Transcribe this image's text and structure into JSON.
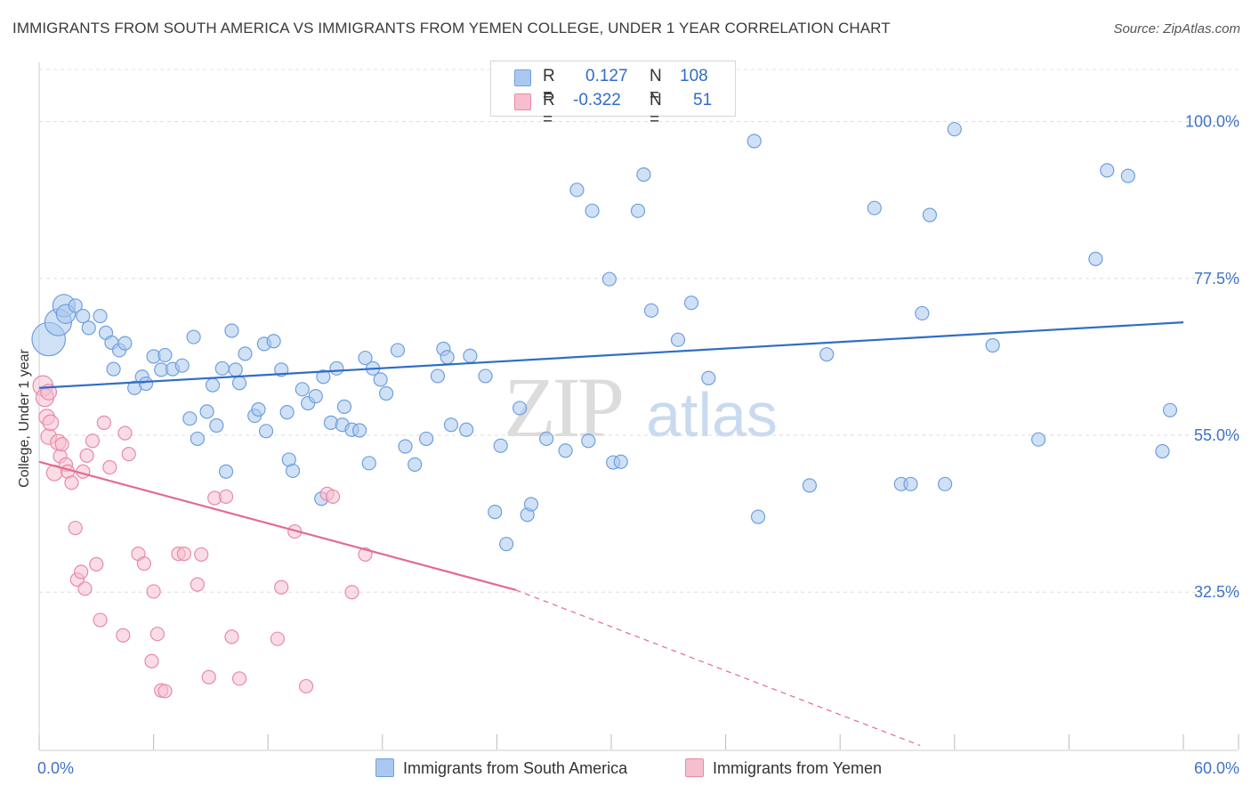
{
  "title": "IMMIGRANTS FROM SOUTH AMERICA VS IMMIGRANTS FROM YEMEN COLLEGE, UNDER 1 YEAR CORRELATION CHART",
  "source": "Source: ZipAtlas.com",
  "watermark": {
    "zip": "ZIP",
    "atlas": "atlas"
  },
  "legend_top": [
    {
      "r_label": "R =",
      "r_value": "0.127",
      "n_label": "N =",
      "n_value": "108"
    },
    {
      "r_label": "R =",
      "r_value": "-0.322",
      "n_label": "N =",
      "n_value": "51"
    }
  ],
  "colors": {
    "blue_fill": "#aac8ef",
    "blue_stroke": "#6f9fde",
    "blue_line": "#2f6dc6",
    "pink_fill": "#f6bfd0",
    "pink_stroke": "#e88aa8",
    "pink_line": "#e26b93",
    "axis_text": "#3f72c6"
  },
  "chart_data": {
    "type": "scatter",
    "title": "IMMIGRANTS FROM SOUTH AMERICA VS IMMIGRANTS FROM YEMEN COLLEGE, UNDER 1 YEAR CORRELATION CHART",
    "xlabel": "",
    "ylabel": "College, Under 1 year",
    "xlim": [
      0,
      60
    ],
    "ylim": [
      9.8,
      108.5
    ],
    "x_tick_labels": [
      "0.0%",
      "60.0%"
    ],
    "y_ticks": [
      32.5,
      55.0,
      77.5,
      100.0
    ],
    "y_tick_labels": [
      "32.5%",
      "55.0%",
      "77.5%",
      "100.0%"
    ],
    "grid": true,
    "legend_position": "bottom",
    "series": [
      {
        "name": "Immigrants from South America",
        "color": "#aac8ef",
        "trend": {
          "x": [
            0,
            60
          ],
          "y": [
            61.8,
            71.2
          ]
        },
        "points": [
          [
            0.5,
            68.8
          ],
          [
            1.0,
            71.2
          ],
          [
            1.3,
            73.6
          ],
          [
            1.4,
            72.4
          ],
          [
            1.9,
            73.6
          ],
          [
            2.3,
            72.1
          ],
          [
            2.6,
            70.4
          ],
          [
            3.2,
            72.1
          ],
          [
            3.5,
            69.7
          ],
          [
            3.8,
            68.3
          ],
          [
            3.9,
            64.5
          ],
          [
            4.2,
            67.2
          ],
          [
            4.5,
            68.2
          ],
          [
            5.0,
            61.8
          ],
          [
            5.4,
            63.4
          ],
          [
            5.6,
            62.4
          ],
          [
            6.0,
            66.3
          ],
          [
            6.4,
            64.4
          ],
          [
            6.6,
            66.5
          ],
          [
            7.0,
            64.5
          ],
          [
            7.5,
            65.0
          ],
          [
            7.9,
            57.4
          ],
          [
            8.1,
            69.1
          ],
          [
            8.3,
            54.5
          ],
          [
            8.8,
            58.4
          ],
          [
            9.1,
            62.2
          ],
          [
            9.3,
            56.4
          ],
          [
            9.6,
            64.6
          ],
          [
            9.8,
            49.8
          ],
          [
            10.1,
            70.0
          ],
          [
            10.3,
            64.4
          ],
          [
            10.5,
            62.5
          ],
          [
            10.8,
            66.7
          ],
          [
            11.3,
            57.8
          ],
          [
            11.5,
            58.7
          ],
          [
            11.8,
            68.1
          ],
          [
            11.9,
            55.6
          ],
          [
            12.3,
            68.5
          ],
          [
            12.7,
            64.4
          ],
          [
            13.0,
            58.3
          ],
          [
            13.1,
            51.5
          ],
          [
            13.3,
            49.9
          ],
          [
            13.8,
            61.6
          ],
          [
            14.1,
            59.6
          ],
          [
            14.5,
            60.6
          ],
          [
            14.8,
            45.9
          ],
          [
            14.9,
            63.4
          ],
          [
            15.3,
            56.8
          ],
          [
            15.6,
            64.6
          ],
          [
            15.9,
            56.5
          ],
          [
            16.0,
            59.1
          ],
          [
            16.4,
            55.8
          ],
          [
            16.8,
            55.7
          ],
          [
            17.1,
            66.1
          ],
          [
            17.3,
            51.0
          ],
          [
            17.5,
            64.6
          ],
          [
            17.9,
            63.0
          ],
          [
            18.2,
            61.0
          ],
          [
            18.8,
            67.2
          ],
          [
            19.2,
            53.4
          ],
          [
            19.7,
            50.8
          ],
          [
            20.3,
            54.5
          ],
          [
            20.9,
            63.5
          ],
          [
            21.2,
            67.4
          ],
          [
            21.4,
            66.2
          ],
          [
            21.6,
            56.5
          ],
          [
            22.4,
            55.8
          ],
          [
            22.6,
            66.4
          ],
          [
            23.4,
            63.5
          ],
          [
            23.9,
            44.0
          ],
          [
            24.2,
            53.5
          ],
          [
            24.5,
            39.4
          ],
          [
            25.2,
            58.9
          ],
          [
            25.6,
            43.6
          ],
          [
            25.8,
            45.1
          ],
          [
            26.6,
            54.5
          ],
          [
            27.6,
            52.8
          ],
          [
            28.2,
            90.2
          ],
          [
            28.8,
            54.2
          ],
          [
            29.0,
            87.2
          ],
          [
            29.9,
            77.4
          ],
          [
            30.1,
            51.1
          ],
          [
            30.5,
            51.2
          ],
          [
            31.4,
            87.2
          ],
          [
            31.7,
            92.4
          ],
          [
            32.1,
            72.9
          ],
          [
            33.5,
            68.7
          ],
          [
            34.2,
            74.0
          ],
          [
            35.1,
            63.2
          ],
          [
            37.5,
            97.2
          ],
          [
            37.7,
            43.3
          ],
          [
            40.4,
            47.8
          ],
          [
            41.3,
            66.6
          ],
          [
            43.8,
            87.6
          ],
          [
            45.2,
            48.0
          ],
          [
            45.7,
            48.0
          ],
          [
            46.3,
            72.5
          ],
          [
            46.7,
            86.6
          ],
          [
            47.5,
            48.0
          ],
          [
            48.0,
            98.9
          ],
          [
            50.0,
            67.9
          ],
          [
            52.4,
            54.4
          ],
          [
            55.4,
            80.3
          ],
          [
            56.0,
            93.0
          ],
          [
            57.1,
            92.2
          ],
          [
            58.9,
            52.7
          ],
          [
            59.3,
            58.6
          ]
        ],
        "sizes": [
          30,
          24,
          20,
          17,
          12,
          12,
          12,
          12,
          12,
          12,
          12,
          12,
          12,
          12,
          12,
          12,
          12,
          12,
          12,
          12,
          12,
          12,
          12,
          12,
          12,
          12,
          12,
          12,
          12,
          12,
          12,
          12,
          12,
          12,
          12,
          12,
          12,
          12,
          12,
          12,
          12,
          12,
          12,
          12,
          12,
          12,
          12,
          12,
          12,
          12,
          12,
          12,
          12,
          12,
          12,
          12,
          12,
          12,
          12,
          12,
          12,
          12,
          12,
          12,
          12,
          12,
          12,
          12,
          12,
          12,
          12,
          12,
          12,
          12,
          12,
          12,
          12,
          12,
          12,
          12,
          12,
          12,
          12,
          12,
          12,
          12,
          12,
          12,
          12,
          12,
          12,
          12,
          12,
          12,
          12,
          12,
          12,
          12,
          12,
          12,
          12,
          12,
          12,
          12,
          12,
          12,
          12,
          12
        ]
      },
      {
        "name": "Immigrants from Yemen",
        "color": "#f6bfd0",
        "trend": {
          "x": [
            0,
            25.0,
            46.2
          ],
          "y": [
            51.2,
            32.8,
            10.5
          ]
        },
        "points": [
          [
            0.2,
            62.1
          ],
          [
            0.3,
            60.4
          ],
          [
            0.4,
            57.6
          ],
          [
            0.5,
            54.8
          ],
          [
            0.5,
            61.2
          ],
          [
            0.6,
            56.8
          ],
          [
            0.8,
            49.6
          ],
          [
            1.0,
            54.0
          ],
          [
            1.1,
            52.0
          ],
          [
            1.2,
            53.7
          ],
          [
            1.4,
            50.8
          ],
          [
            1.5,
            49.8
          ],
          [
            1.7,
            48.2
          ],
          [
            1.9,
            41.7
          ],
          [
            2.0,
            34.3
          ],
          [
            2.2,
            35.4
          ],
          [
            2.3,
            49.8
          ],
          [
            2.4,
            33.0
          ],
          [
            2.5,
            52.1
          ],
          [
            2.8,
            54.2
          ],
          [
            3.0,
            36.5
          ],
          [
            3.2,
            28.5
          ],
          [
            3.4,
            56.8
          ],
          [
            3.7,
            50.4
          ],
          [
            4.4,
            26.3
          ],
          [
            4.5,
            55.3
          ],
          [
            4.7,
            52.3
          ],
          [
            5.2,
            38.0
          ],
          [
            5.5,
            36.6
          ],
          [
            5.9,
            22.6
          ],
          [
            6.0,
            32.6
          ],
          [
            6.2,
            26.5
          ],
          [
            6.4,
            18.4
          ],
          [
            6.6,
            18.3
          ],
          [
            7.3,
            38.0
          ],
          [
            7.6,
            38.0
          ],
          [
            8.3,
            33.6
          ],
          [
            8.5,
            37.9
          ],
          [
            8.9,
            20.3
          ],
          [
            9.2,
            46.0
          ],
          [
            9.8,
            46.2
          ],
          [
            10.1,
            26.1
          ],
          [
            10.5,
            20.1
          ],
          [
            12.5,
            25.8
          ],
          [
            12.7,
            33.2
          ],
          [
            13.4,
            41.2
          ],
          [
            14.0,
            19.0
          ],
          [
            15.1,
            46.6
          ],
          [
            15.4,
            46.2
          ],
          [
            16.4,
            32.5
          ],
          [
            17.1,
            37.9
          ]
        ],
        "sizes": [
          18,
          16,
          14,
          14,
          14,
          14,
          14,
          14,
          12,
          12,
          12,
          12,
          12,
          12,
          12,
          12,
          12,
          12,
          12,
          12,
          12,
          12,
          12,
          12,
          12,
          12,
          12,
          12,
          12,
          12,
          12,
          12,
          12,
          12,
          12,
          12,
          12,
          12,
          12,
          12,
          12,
          12,
          12,
          12,
          12,
          12,
          12,
          12,
          12,
          12,
          12
        ]
      }
    ]
  }
}
